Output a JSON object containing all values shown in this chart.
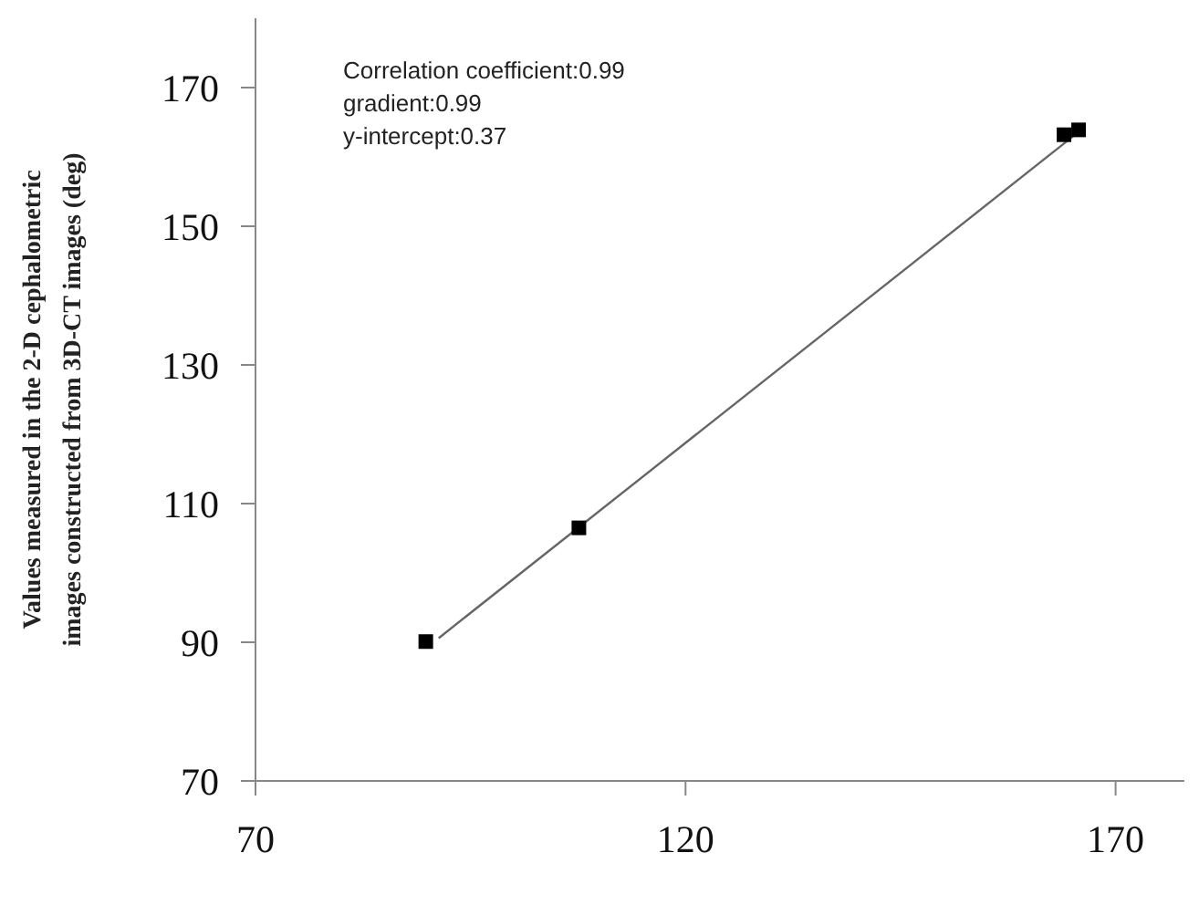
{
  "chart_data": {
    "type": "scatter",
    "ylabel": "Values measured in the 2-D cephalometric images constructed from 3D-CT images (deg)",
    "annotations": [
      "Correlation coefficient:0.99",
      "gradient:0.99",
      "y-intercept:0.37"
    ],
    "series": [
      {
        "color": "#000000",
        "marker": "square",
        "x": [
          89.8,
          107.6,
          164.0,
          165.7
        ],
        "values": [
          90.1,
          106.5,
          163.2,
          163.9
        ]
      },
      {
        "type": "line",
        "color": "#666666",
        "marker": "none",
        "x": [
          91.3,
          165.3
        ],
        "values": [
          90.6,
          163.2
        ]
      }
    ],
    "xlim": [
      70,
      178
    ],
    "ylim": [
      70,
      180
    ],
    "xticks": [
      70,
      120,
      170
    ],
    "yticks": [
      70,
      90,
      110,
      130,
      150,
      170
    ],
    "grid": false
  }
}
